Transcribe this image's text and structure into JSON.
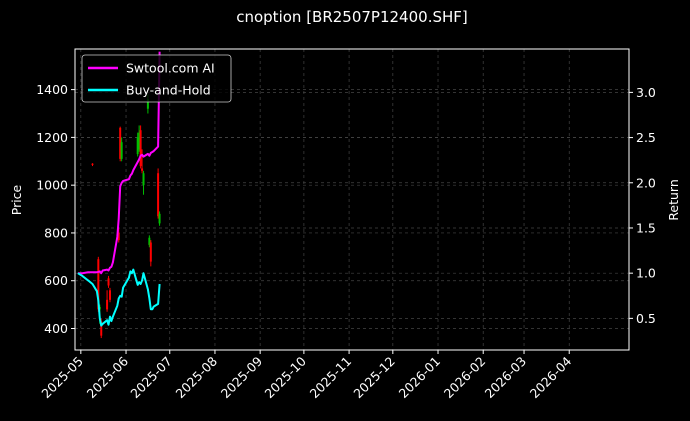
{
  "chart_data": {
    "type": "line",
    "title": "cnoption [BR2507P12400.SHF]",
    "xlabel": "",
    "ylabel": "Price",
    "y2label": "Return",
    "x_ticks": [
      "2025-05",
      "2025-06",
      "2025-07",
      "2025-08",
      "2025-09",
      "2025-10",
      "2025-11",
      "2025-12",
      "2026-01",
      "2026-02",
      "2026-03",
      "2026-04"
    ],
    "xlim": [
      "2025-04-27",
      "2026-05-12"
    ],
    "ylim": [
      310,
      1570
    ],
    "y_ticks": [
      400,
      600,
      800,
      1000,
      1200,
      1400
    ],
    "y2lim": [
      0.15,
      3.48
    ],
    "y2_ticks": [
      0.5,
      1.0,
      1.5,
      2.0,
      2.5,
      3.0
    ],
    "grid": true,
    "legend_position": "top-left",
    "colors": {
      "background": "#000000",
      "strategy": "#ff00ff",
      "benchmark": "#00ffff",
      "candle_up": "#00c000",
      "candle_down": "#ff0000",
      "grid": "#444444"
    },
    "series": [
      {
        "name": "Swtool.com AI",
        "axis": "right",
        "points": [
          [
            "2025-04-29",
            1.0
          ],
          [
            "2025-05-02",
            1.0
          ],
          [
            "2025-05-06",
            1.01
          ],
          [
            "2025-05-09",
            1.01
          ],
          [
            "2025-05-12",
            1.01
          ],
          [
            "2025-05-14",
            1.02
          ],
          [
            "2025-05-15",
            1.0
          ],
          [
            "2025-05-16",
            1.03
          ],
          [
            "2025-05-19",
            1.04
          ],
          [
            "2025-05-20",
            1.03
          ],
          [
            "2025-05-21",
            1.06
          ],
          [
            "2025-05-22",
            1.07
          ],
          [
            "2025-05-23",
            1.12
          ],
          [
            "2025-05-26",
            1.4
          ],
          [
            "2025-05-27",
            1.6
          ],
          [
            "2025-05-28",
            1.96
          ],
          [
            "2025-05-29",
            2.0
          ],
          [
            "2025-05-30",
            2.02
          ],
          [
            "2025-06-03",
            2.04
          ],
          [
            "2025-06-04",
            2.08
          ],
          [
            "2025-06-05",
            2.1
          ],
          [
            "2025-06-06",
            2.14
          ],
          [
            "2025-06-09",
            2.23
          ],
          [
            "2025-06-10",
            2.26
          ],
          [
            "2025-06-11",
            2.3
          ],
          [
            "2025-06-12",
            2.31
          ],
          [
            "2025-06-13",
            2.29
          ],
          [
            "2025-06-16",
            2.32
          ],
          [
            "2025-06-17",
            2.3
          ],
          [
            "2025-06-18",
            2.33
          ],
          [
            "2025-06-19",
            2.34
          ],
          [
            "2025-06-20",
            2.35
          ],
          [
            "2025-06-23",
            2.4
          ],
          [
            "2025-06-24",
            3.45
          ]
        ]
      },
      {
        "name": "Buy-and-Hold",
        "axis": "right",
        "points": [
          [
            "2025-04-29",
            1.0
          ],
          [
            "2025-05-02",
            0.97
          ],
          [
            "2025-05-06",
            0.92
          ],
          [
            "2025-05-09",
            0.88
          ],
          [
            "2025-05-12",
            0.8
          ],
          [
            "2025-05-13",
            0.7
          ],
          [
            "2025-05-14",
            0.5
          ],
          [
            "2025-05-15",
            0.42
          ],
          [
            "2025-05-16",
            0.44
          ],
          [
            "2025-05-19",
            0.48
          ],
          [
            "2025-05-20",
            0.43
          ],
          [
            "2025-05-21",
            0.52
          ],
          [
            "2025-05-22",
            0.47
          ],
          [
            "2025-05-23",
            0.52
          ],
          [
            "2025-05-26",
            0.64
          ],
          [
            "2025-05-27",
            0.72
          ],
          [
            "2025-05-28",
            0.75
          ],
          [
            "2025-05-29",
            0.74
          ],
          [
            "2025-05-30",
            0.84
          ],
          [
            "2025-06-03",
            0.95
          ],
          [
            "2025-06-04",
            1.02
          ],
          [
            "2025-06-05",
            1.0
          ],
          [
            "2025-06-06",
            1.04
          ],
          [
            "2025-06-09",
            0.87
          ],
          [
            "2025-06-10",
            0.9
          ],
          [
            "2025-06-11",
            0.88
          ],
          [
            "2025-06-12",
            0.92
          ],
          [
            "2025-06-13",
            1.0
          ],
          [
            "2025-06-16",
            0.82
          ],
          [
            "2025-06-17",
            0.72
          ],
          [
            "2025-06-18",
            0.6
          ],
          [
            "2025-06-19",
            0.6
          ],
          [
            "2025-06-20",
            0.63
          ],
          [
            "2025-06-23",
            0.66
          ],
          [
            "2025-06-24",
            0.88
          ]
        ]
      }
    ],
    "candles": [
      {
        "date": "2025-05-09",
        "open": 1090,
        "close": 1085,
        "high": 1092,
        "low": 1080
      },
      {
        "date": "2025-05-13",
        "open": 690,
        "close": 480,
        "high": 700,
        "low": 470
      },
      {
        "date": "2025-05-14",
        "open": 480,
        "close": 490,
        "high": 500,
        "low": 420
      },
      {
        "date": "2025-05-15",
        "open": 430,
        "close": 370,
        "high": 440,
        "low": 360
      },
      {
        "date": "2025-05-19",
        "open": 520,
        "close": 480,
        "high": 560,
        "low": 470
      },
      {
        "date": "2025-05-20",
        "open": 610,
        "close": 580,
        "high": 620,
        "low": 570
      },
      {
        "date": "2025-05-21",
        "open": 560,
        "close": 520,
        "high": 570,
        "low": 510
      },
      {
        "date": "2025-05-27",
        "open": 800,
        "close": 770,
        "high": 820,
        "low": 760
      },
      {
        "date": "2025-05-28",
        "open": 1240,
        "close": 1110,
        "high": 1245,
        "low": 1100
      },
      {
        "date": "2025-05-29",
        "open": 1110,
        "close": 1180,
        "high": 1200,
        "low": 1100
      },
      {
        "date": "2025-06-09",
        "open": 1130,
        "close": 1200,
        "high": 1220,
        "low": 1120
      },
      {
        "date": "2025-06-10",
        "open": 1150,
        "close": 1220,
        "high": 1250,
        "low": 1140
      },
      {
        "date": "2025-06-11",
        "open": 1230,
        "close": 1080,
        "high": 1250,
        "low": 1070
      },
      {
        "date": "2025-06-12",
        "open": 1070,
        "close": 1060,
        "high": 1150,
        "low": 1050
      },
      {
        "date": "2025-06-13",
        "open": 1000,
        "close": 1050,
        "high": 1060,
        "low": 960
      },
      {
        "date": "2025-06-16",
        "open": 1320,
        "close": 1360,
        "high": 1380,
        "low": 1300
      },
      {
        "date": "2025-06-17",
        "open": 750,
        "close": 780,
        "high": 790,
        "low": 740
      },
      {
        "date": "2025-06-18",
        "open": 760,
        "close": 680,
        "high": 770,
        "low": 660
      },
      {
        "date": "2025-06-23",
        "open": 1050,
        "close": 870,
        "high": 1070,
        "low": 860
      },
      {
        "date": "2025-06-24",
        "open": 840,
        "close": 880,
        "high": 890,
        "low": 830
      }
    ]
  }
}
